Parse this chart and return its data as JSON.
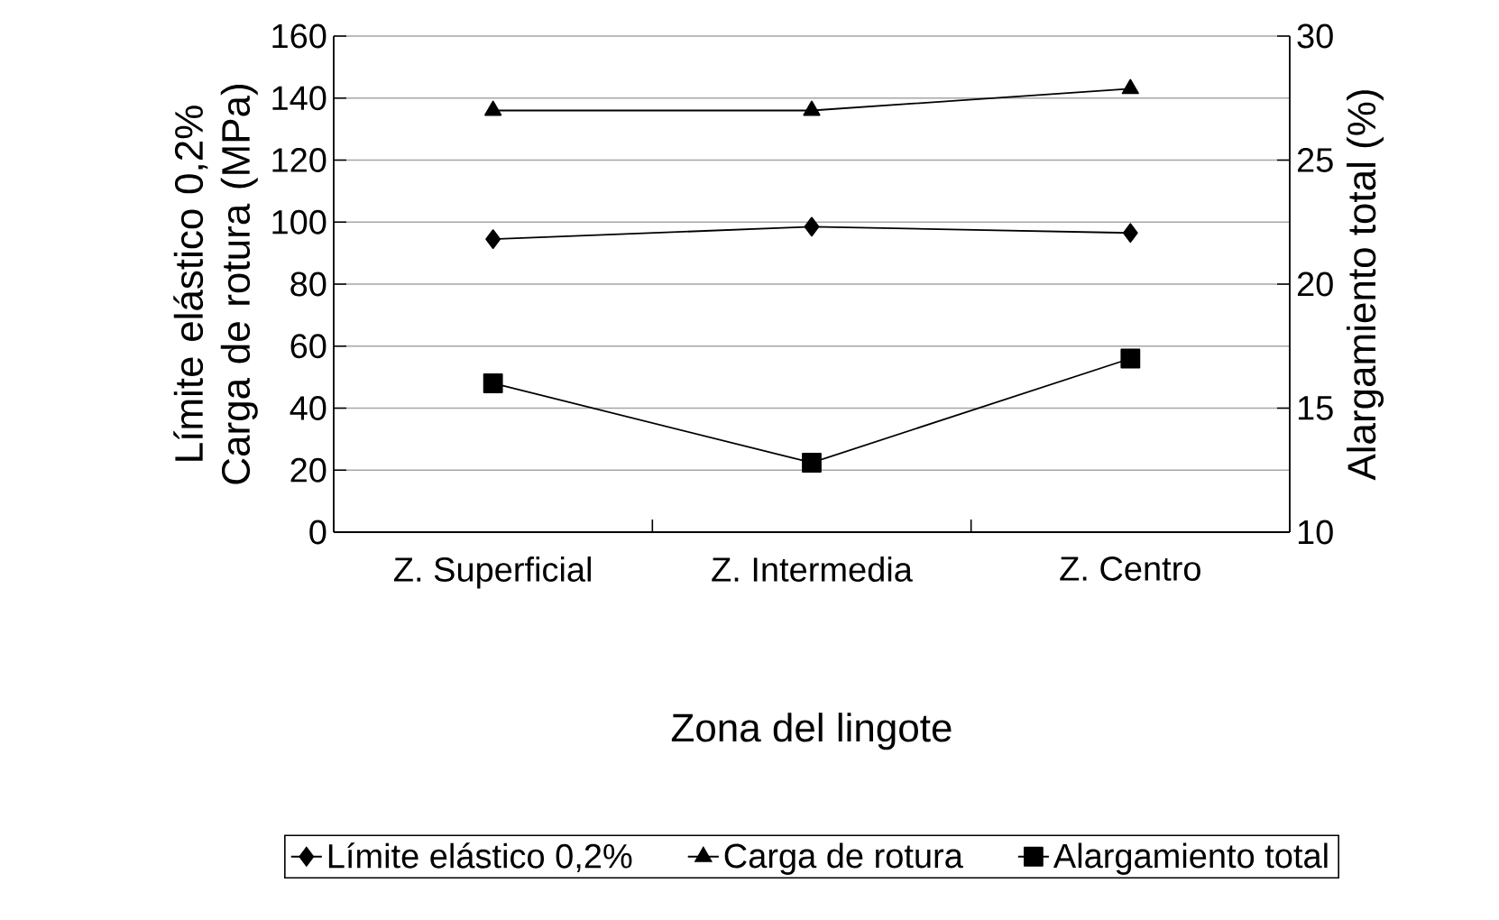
{
  "chart_data": {
    "type": "line",
    "xlabel": "Zona del lingote",
    "ylabel": "Límite elástico 0,2% Carga de rotura (MPa)",
    "y2label": "Alargamiento total (%)",
    "categories": [
      "Z. Superficial",
      "Z. Intermedia",
      "Z. Centro"
    ],
    "series": [
      {
        "name": "Límite elástico 0,2%",
        "color": "#000000",
        "marker": "diamond",
        "values": [
          94.5,
          98.5,
          96.5
        ]
      },
      {
        "name": "Carga de rotura",
        "color": "#000000",
        "marker": "triangle",
        "values": [
          136,
          136,
          143
        ]
      },
      {
        "name": "Alargamiento total",
        "color": "#000000",
        "marker": "square",
        "axis": "y2",
        "values": [
          16.0,
          12.8,
          17.0
        ]
      }
    ],
    "ylim": [
      0,
      160
    ],
    "yticks": [
      0,
      20,
      40,
      60,
      80,
      100,
      120,
      140,
      160
    ],
    "y2lim": [
      10,
      30
    ],
    "y2ticks": [
      10,
      15,
      20,
      25,
      30
    ],
    "grid": "y",
    "legend": "bottom",
    "line_style": "solid"
  }
}
